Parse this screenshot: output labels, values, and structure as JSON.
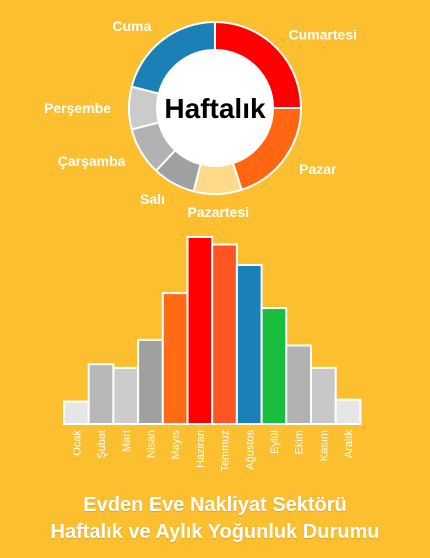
{
  "chart_data": [
    {
      "type": "pie",
      "variant": "donut",
      "center_label": "Haftalık",
      "labels": [
        "Cumartesi",
        "Pazar",
        "Pazartesi",
        "Salı",
        "Çarşamba",
        "Perşembe",
        "Cuma"
      ],
      "values": [
        25,
        20,
        9,
        8,
        9,
        8,
        21
      ],
      "colors": [
        "#FF0000",
        "#FF6611",
        "#FFD98A",
        "#A0A0A0",
        "#B2B2B2",
        "#CBCBCB",
        "#1A80B6"
      ]
    },
    {
      "type": "bar",
      "categories": [
        "Ocak",
        "Şubat",
        "Mart",
        "Nisan",
        "Mayıs",
        "Haziran",
        "Temmuz",
        "Ağustos",
        "Eylül",
        "Ekim",
        "Kasım",
        "Aralık"
      ],
      "values": [
        12,
        32,
        30,
        45,
        70,
        100,
        96,
        85,
        62,
        42,
        30,
        13
      ],
      "ylim": [
        0,
        100
      ],
      "colors": [
        "#E6E6E6",
        "#B8B8B8",
        "#CCCCCC",
        "#A0A0A0",
        "#FF6A14",
        "#FF0000",
        "#FF5520",
        "#1A80B6",
        "#19BE3E",
        "#B2B2B2",
        "#C8C8C8",
        "#E6E6E6"
      ]
    }
  ],
  "footer": {
    "line1": "Evden Eve Nakliyat Sektörü",
    "line2": "Haftalık ve Aylık Yoğunluk Durumu"
  }
}
